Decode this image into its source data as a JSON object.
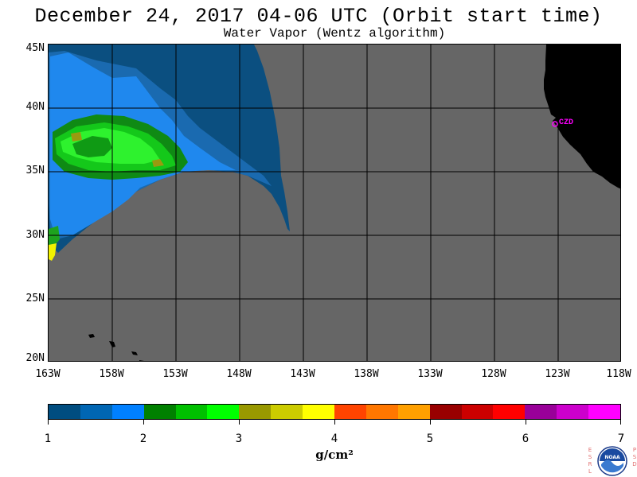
{
  "header": {
    "title": "December 24, 2017  04-06 UTC  (Orbit start time)",
    "subtitle": "Water Vapor (Wentz algorithm)"
  },
  "map": {
    "lat_labels": [
      "45N",
      "40N",
      "35N",
      "30N",
      "25N",
      "20N"
    ],
    "lon_labels": [
      "163W",
      "158W",
      "153W",
      "148W",
      "143W",
      "138W",
      "133W",
      "128W",
      "123W",
      "118W"
    ],
    "station_label": "CZD",
    "land_color": "#000000",
    "no_data_color": "#666666"
  },
  "colorbar": {
    "colors": [
      "#004d80",
      "#0066b3",
      "#0080ff",
      "#008000",
      "#00c000",
      "#00ff00",
      "#999900",
      "#cccc00",
      "#ffff00",
      "#ff4400",
      "#ff7700",
      "#ffa000",
      "#990000",
      "#cc0000",
      "#ff0000",
      "#990099",
      "#cc00cc",
      "#ff00ff"
    ],
    "tick_labels": [
      "1",
      "2",
      "3",
      "4",
      "5",
      "6",
      "7"
    ],
    "unit": "g/cm²"
  },
  "logo": {
    "left_letters": "E S R L",
    "right_letters": "P S D",
    "badge": "NOAA"
  }
}
